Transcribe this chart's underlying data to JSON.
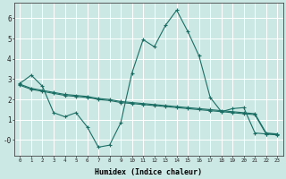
{
  "xlabel": "Humidex (Indice chaleur)",
  "background_color": "#cce8e4",
  "grid_color": "#ffffff",
  "line_color": "#1a6e64",
  "xlim": [
    -0.5,
    23.5
  ],
  "ylim": [
    -0.75,
    6.75
  ],
  "xticks": [
    0,
    1,
    2,
    3,
    4,
    5,
    6,
    7,
    8,
    9,
    10,
    11,
    12,
    13,
    14,
    15,
    16,
    17,
    18,
    19,
    20,
    21,
    22,
    23
  ],
  "yticks": [
    0,
    1,
    2,
    3,
    4,
    5,
    6
  ],
  "ytick_labels": [
    "-0",
    "1",
    "2",
    "3",
    "4",
    "5",
    "6"
  ],
  "series": [
    {
      "x": [
        0,
        1,
        2,
        3,
        4,
        5,
        6,
        7,
        8,
        9,
        10,
        11,
        12,
        13,
        14,
        15,
        16,
        17,
        18,
        19,
        20,
        21,
        22,
        23
      ],
      "y": [
        2.8,
        3.2,
        2.65,
        1.35,
        1.15,
        1.35,
        0.65,
        -0.35,
        -0.25,
        0.85,
        3.3,
        4.95,
        4.6,
        5.65,
        6.4,
        5.35,
        4.15,
        2.1,
        1.4,
        1.55,
        1.6,
        0.35,
        0.3,
        0.3
      ]
    },
    {
      "x": [
        0,
        1,
        2,
        3,
        4,
        5,
        6,
        7,
        8,
        9,
        10,
        11,
        12,
        13,
        14,
        15,
        16,
        17,
        18,
        19,
        20,
        21,
        22,
        23
      ],
      "y": [
        2.75,
        2.55,
        2.45,
        2.35,
        2.25,
        2.2,
        2.15,
        2.05,
        2.0,
        1.9,
        1.85,
        1.8,
        1.75,
        1.7,
        1.65,
        1.6,
        1.55,
        1.5,
        1.45,
        1.4,
        1.35,
        1.3,
        0.35,
        0.3
      ]
    },
    {
      "x": [
        0,
        1,
        2,
        3,
        4,
        5,
        6,
        7,
        8,
        9,
        10,
        11,
        12,
        13,
        14,
        15,
        16,
        17,
        18,
        19,
        20,
        21,
        22,
        23
      ],
      "y": [
        2.7,
        2.5,
        2.4,
        2.3,
        2.2,
        2.15,
        2.1,
        2.0,
        1.95,
        1.85,
        1.8,
        1.75,
        1.7,
        1.65,
        1.6,
        1.55,
        1.5,
        1.45,
        1.4,
        1.35,
        1.3,
        1.25,
        0.3,
        0.25
      ]
    }
  ]
}
